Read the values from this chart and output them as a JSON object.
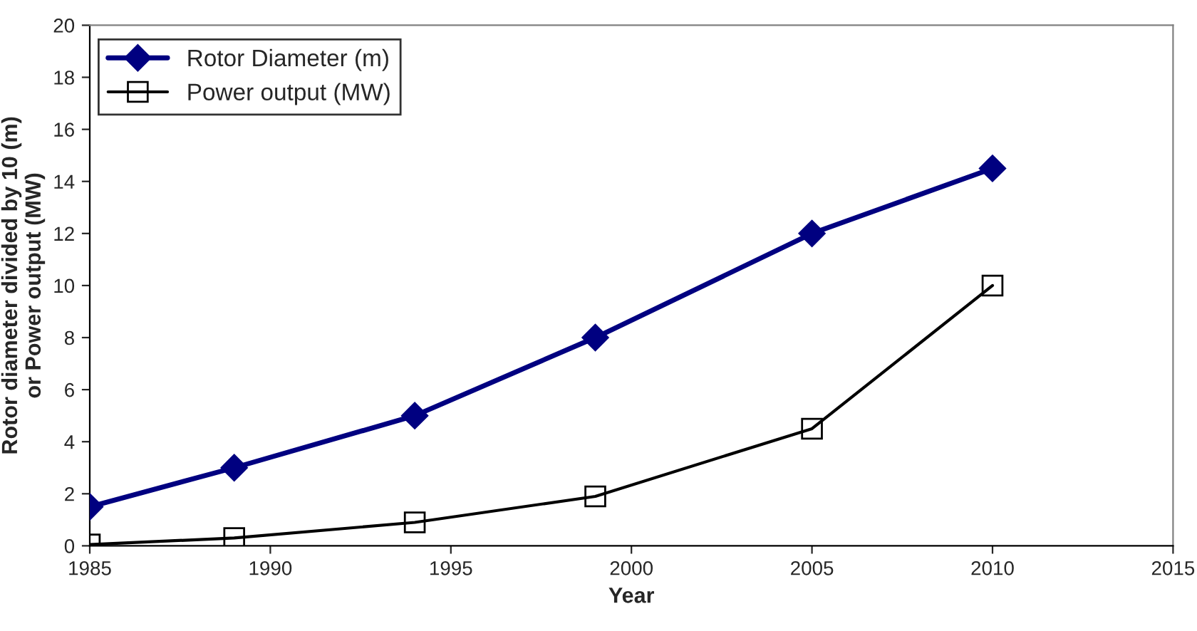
{
  "chart_data": {
    "type": "line",
    "xlabel": "Year",
    "ylabel": "Rotor diameter divided by 10 (m)\nor Power output (MW)",
    "xlim": [
      1985,
      2015
    ],
    "xticks": [
      1985,
      1990,
      1995,
      2000,
      2005,
      2010,
      2015
    ],
    "ylim": [
      0,
      20
    ],
    "yticks": [
      0,
      2,
      4,
      6,
      8,
      10,
      12,
      14,
      16,
      18,
      20
    ],
    "grid": false,
    "legend": "top left",
    "series": [
      {
        "name": "Rotor Diameter (m)",
        "color": "#000080",
        "marker": "diamond",
        "x": [
          1985,
          1989,
          1994,
          1999,
          2005,
          2010
        ],
        "values": [
          1.5,
          3,
          5,
          8,
          12,
          14.5
        ]
      },
      {
        "name": "Power output (MW)",
        "color": "#000000",
        "marker": "square",
        "x": [
          1985,
          1989,
          1994,
          1999,
          2005,
          2010
        ],
        "values": [
          0.05,
          0.3,
          0.9,
          1.9,
          4.5,
          10
        ]
      }
    ]
  }
}
